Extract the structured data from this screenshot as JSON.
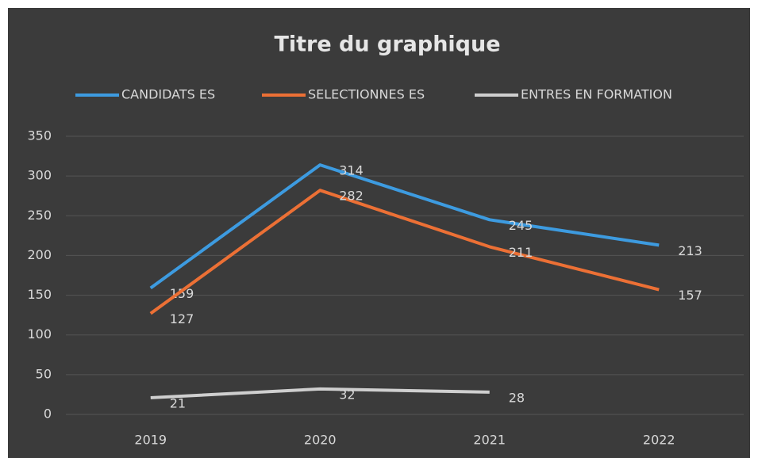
{
  "chart_data": {
    "type": "line",
    "title": "Titre du graphique",
    "categories": [
      "2019",
      "2020",
      "2021",
      "2022"
    ],
    "series": [
      {
        "name": "CANDIDATS ES",
        "color": "#3d9be0",
        "values": [
          159,
          314,
          245,
          213
        ]
      },
      {
        "name": "SELECTIONNES ES",
        "color": "#ec7035",
        "values": [
          127,
          282,
          211,
          157
        ]
      },
      {
        "name": "ENTRES EN FORMATION",
        "color": "#cfcfcf",
        "values": [
          21,
          32,
          28,
          null
        ]
      }
    ],
    "ylim": [
      0,
      350
    ],
    "yticks": [
      0,
      50,
      100,
      150,
      200,
      250,
      300,
      350
    ],
    "grid": true,
    "legend": "top"
  }
}
